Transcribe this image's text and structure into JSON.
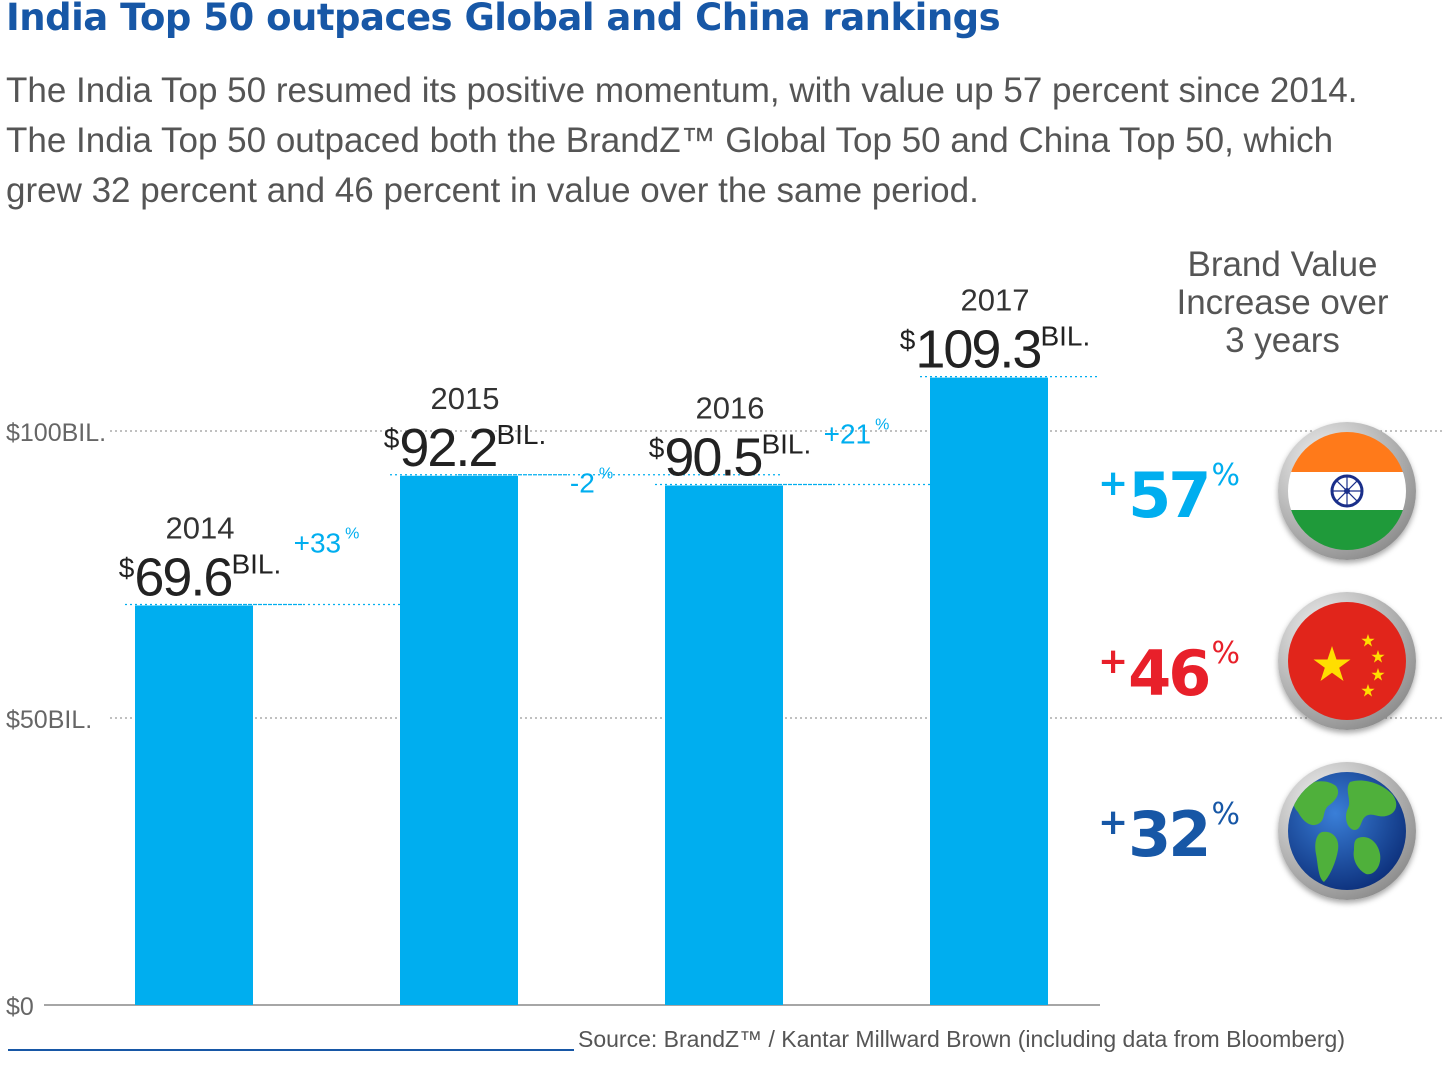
{
  "header": {
    "title": "India Top 50 outpaces Global and China rankings",
    "subtitle": "The India Top 50 resumed its positive momentum, with value up 57 percent since 2014. The India Top 50 outpaced both the BrandZ™ Global Top 50 and China Top 50, which grew 32 percent and 46 percent in value over the same period."
  },
  "chart_data": {
    "type": "bar",
    "categories": [
      "2014",
      "2015",
      "2016",
      "2017"
    ],
    "values": [
      69.6,
      92.2,
      90.5,
      109.3
    ],
    "value_labels": [
      "69.6",
      "92.2",
      "90.5",
      "109.3"
    ],
    "value_prefix": "$",
    "value_suffix": "BIL.",
    "changes": [
      "+33",
      "-2",
      "+21"
    ],
    "change_unit": "%",
    "y_ticks": [
      {
        "value": 0,
        "label": "$0"
      },
      {
        "value": 50,
        "label": "$50BIL."
      },
      {
        "value": 100,
        "label": "$100BIL."
      }
    ],
    "ylim": [
      0,
      109.3
    ],
    "bar_color": "#00aeef",
    "grid": true
  },
  "comparison": {
    "heading": [
      "Brand Value",
      "Increase over",
      "3 years"
    ],
    "items": [
      {
        "sign": "+",
        "value": "57",
        "unit": "%",
        "color": "#00aeef",
        "icon": "india-flag-icon"
      },
      {
        "sign": "+",
        "value": "46",
        "unit": "%",
        "color": "#e8202a",
        "icon": "china-flag-icon"
      },
      {
        "sign": "+",
        "value": "32",
        "unit": "%",
        "color": "#1757a6",
        "icon": "globe-icon"
      }
    ]
  },
  "footer": {
    "source": "Source: BrandZ™ / Kantar Millward Brown (including data from Bloomberg)"
  }
}
